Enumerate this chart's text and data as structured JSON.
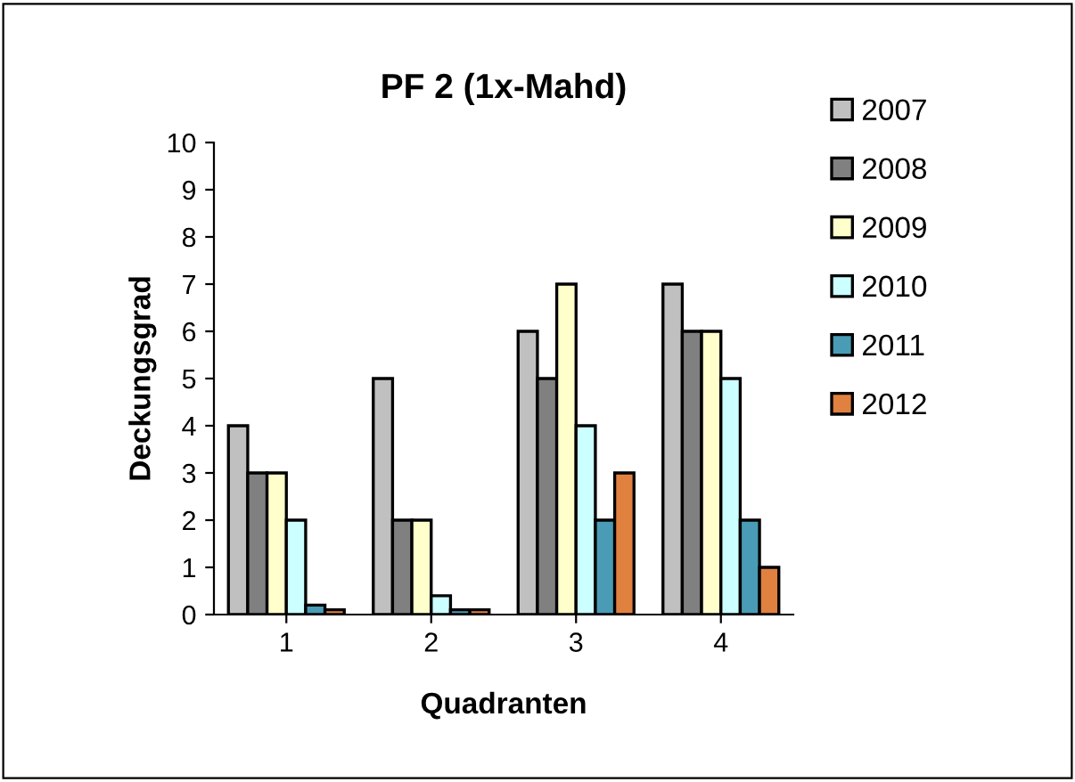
{
  "chart_data": {
    "type": "bar",
    "title": "PF 2 (1x-Mahd)",
    "xlabel": "Quadranten",
    "ylabel": "Deckungsgrad",
    "categories": [
      "1",
      "2",
      "3",
      "4"
    ],
    "series": [
      {
        "name": "2007",
        "color": "#c0c0c0",
        "values": [
          4,
          5,
          6,
          7
        ]
      },
      {
        "name": "2008",
        "color": "#808080",
        "values": [
          3,
          2,
          5,
          6
        ]
      },
      {
        "name": "2009",
        "color": "#ffffcc",
        "values": [
          3,
          2,
          7,
          6
        ]
      },
      {
        "name": "2010",
        "color": "#ccffff",
        "values": [
          2,
          0.4,
          4,
          5
        ]
      },
      {
        "name": "2011",
        "color": "#4a9bb5",
        "values": [
          0.2,
          0.1,
          2,
          2
        ]
      },
      {
        "name": "2012",
        "color": "#e0813f",
        "values": [
          0.1,
          0.1,
          3,
          1
        ]
      }
    ],
    "ylim": [
      0,
      10
    ],
    "yticks": [
      0,
      1,
      2,
      3,
      4,
      5,
      6,
      7,
      8,
      9,
      10
    ],
    "grid": false,
    "legend": "top right"
  }
}
